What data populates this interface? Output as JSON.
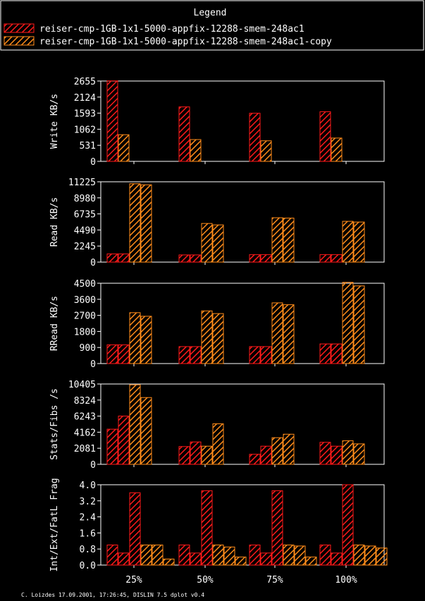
{
  "legend": {
    "title": "Legend",
    "entries": [
      {
        "label": "reiser-cmp-1GB-1x1-5000-appfix-12288-smem-248ac1",
        "color": "#ff1a1a",
        "color_name": "red"
      },
      {
        "label": "reiser-cmp-1GB-1x1-5000-appfix-12288-smem-248ac1-copy",
        "color": "#ff8c1a",
        "color_name": "orange"
      }
    ]
  },
  "footer": "C. Loizdes 17.09.2001, 17:26:45, DISLIN 7.5 dplot v0.4",
  "chart_data": [
    {
      "type": "bar",
      "ylabel": "Write KB/s",
      "yticks": [
        "0",
        "531",
        "1062",
        "1593",
        "2124",
        "2655"
      ],
      "ylim": [
        0,
        2655
      ],
      "categories": [
        "25%",
        "50%",
        "75%",
        "100%"
      ],
      "bars_per_category": 2,
      "series": [
        {
          "name": "reiser-cmp-1GB-1x1-5000-appfix-12288-smem-248ac1",
          "values": [
            [
              2660
            ],
            [
              1800
            ],
            [
              1590
            ],
            [
              1640
            ]
          ]
        },
        {
          "name": "reiser-cmp-1GB-1x1-5000-appfix-12288-smem-248ac1-copy",
          "values": [
            [
              880
            ],
            [
              720
            ],
            [
              680
            ],
            [
              770
            ]
          ]
        }
      ]
    },
    {
      "type": "bar",
      "ylabel": "Read KB/s",
      "yticks": [
        "0",
        "2245",
        "4490",
        "6735",
        "8980",
        "11225"
      ],
      "ylim": [
        0,
        11225
      ],
      "categories": [
        "25%",
        "50%",
        "75%",
        "100%"
      ],
      "bars_per_category": 4,
      "series": [
        {
          "name": "reiser-cmp-1GB-1x1-5000-appfix-12288-smem-248ac1",
          "values": [
            [
              1150,
              1150
            ],
            [
              1000,
              1000
            ],
            [
              1050,
              1050
            ],
            [
              1050,
              1050
            ]
          ]
        },
        {
          "name": "reiser-cmp-1GB-1x1-5000-appfix-12288-smem-248ac1-copy",
          "values": [
            [
              10950,
              10800
            ],
            [
              5400,
              5200
            ],
            [
              6200,
              6150
            ],
            [
              5700,
              5600
            ]
          ]
        }
      ]
    },
    {
      "type": "bar",
      "ylabel": "RRead KB/s",
      "yticks": [
        "0",
        "900",
        "1800",
        "2700",
        "3600",
        "4500"
      ],
      "ylim": [
        0,
        4500
      ],
      "categories": [
        "25%",
        "50%",
        "75%",
        "100%"
      ],
      "bars_per_category": 4,
      "series": [
        {
          "name": "reiser-cmp-1GB-1x1-5000-appfix-12288-smem-248ac1",
          "values": [
            [
              1050,
              1050
            ],
            [
              950,
              950
            ],
            [
              950,
              950
            ],
            [
              1100,
              1100
            ]
          ]
        },
        {
          "name": "reiser-cmp-1GB-1x1-5000-appfix-12288-smem-248ac1-copy",
          "values": [
            [
              2850,
              2650
            ],
            [
              2950,
              2800
            ],
            [
              3400,
              3300
            ],
            [
              4550,
              4350
            ]
          ]
        }
      ]
    },
    {
      "type": "bar",
      "ylabel": "Stats/Fibs /s",
      "yticks": [
        "0",
        "2081",
        "4162",
        "6243",
        "8324",
        "10405"
      ],
      "ylim": [
        0,
        10405
      ],
      "categories": [
        "25%",
        "50%",
        "75%",
        "100%"
      ],
      "bars_per_category": 4,
      "series": [
        {
          "name": "reiser-cmp-1GB-1x1-5000-appfix-12288-smem-248ac1",
          "values": [
            [
              4550,
              6250
            ],
            [
              2300,
              2900
            ],
            [
              1300,
              2350
            ],
            [
              2850,
              2350
            ]
          ]
        },
        {
          "name": "reiser-cmp-1GB-1x1-5000-appfix-12288-smem-248ac1-copy",
          "values": [
            [
              10300,
              8650
            ],
            [
              2350,
              5250
            ],
            [
              3450,
              3900
            ],
            [
              3050,
              2650
            ]
          ]
        }
      ]
    },
    {
      "type": "bar",
      "ylabel": "Int/Ext/FatL Frag",
      "yticks": [
        "0.0",
        "0.8",
        "1.6",
        "2.4",
        "3.2",
        "4.0"
      ],
      "ylim": [
        0,
        4.0
      ],
      "categories": [
        "25%",
        "50%",
        "75%",
        "100%"
      ],
      "bars_per_category": 6,
      "series": [
        {
          "name": "reiser-cmp-1GB-1x1-5000-appfix-12288-smem-248ac1",
          "values": [
            [
              1.0,
              0.6,
              3.6
            ],
            [
              1.0,
              0.6,
              3.7
            ],
            [
              1.0,
              0.6,
              3.7
            ],
            [
              1.0,
              0.6,
              4.0
            ]
          ]
        },
        {
          "name": "reiser-cmp-1GB-1x1-5000-appfix-12288-smem-248ac1-copy",
          "values": [
            [
              1.0,
              1.0,
              0.3
            ],
            [
              1.0,
              0.9,
              0.4
            ],
            [
              1.0,
              0.95,
              0.4
            ],
            [
              1.0,
              0.95,
              0.85
            ]
          ]
        }
      ]
    }
  ]
}
